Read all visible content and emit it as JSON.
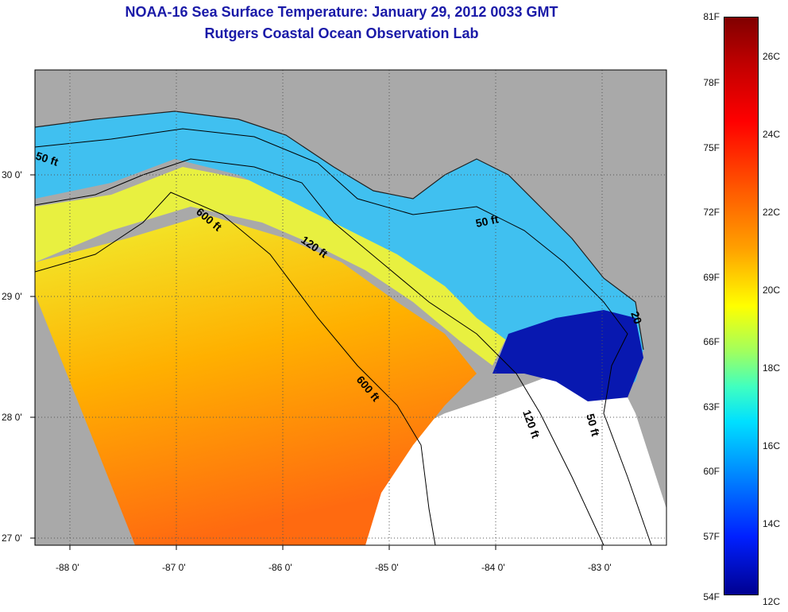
{
  "title": {
    "line1": "NOAA-16 Sea Surface Temperature:  January 29, 2012 0033 GMT",
    "line2": "Rutgers Coastal Ocean Observation Lab"
  },
  "axes": {
    "x_ticks": [
      "-88 0'",
      "-87 0'",
      "-86 0'",
      "-85 0'",
      "-84 0'",
      "-83 0'"
    ],
    "y_ticks": [
      "30 0'",
      "29 0'",
      "28 0'",
      "27 0'"
    ]
  },
  "contours": {
    "c50_west": "50 ft",
    "c600_north": "600 ft",
    "c120_north": "120 ft",
    "c50_north": "50 ft",
    "c600_south": "600 ft",
    "c120_south": "120 ft",
    "c50_south": "50 ft",
    "c20": "20"
  },
  "colorbar": {
    "fahrenheit": [
      "81F",
      "78F",
      "75F",
      "72F",
      "69F",
      "66F",
      "63F",
      "60F",
      "57F",
      "54F"
    ],
    "celsius": [
      "26C",
      "24C",
      "22C",
      "20C",
      "18C",
      "16C",
      "14C",
      "12C"
    ]
  },
  "colors": {
    "land": "#a9a9a9",
    "cloud": "#ffffff",
    "title": "#1a1aa8"
  }
}
